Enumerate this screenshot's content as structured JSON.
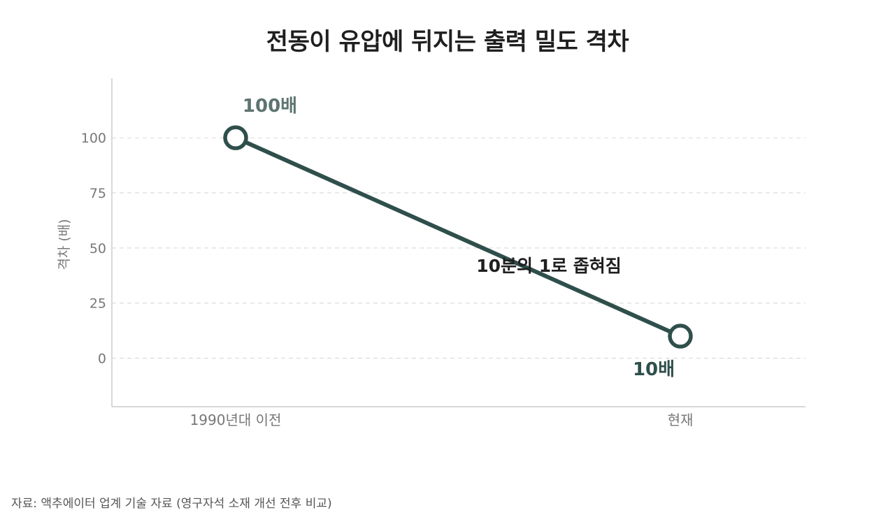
{
  "colors": {
    "line": "#2f4f4b",
    "marker_fill": "#ffffff",
    "label_start": "#5e7471",
    "label_end": "#2f4f4b",
    "grid": "#dddddd",
    "axis": "#cccccc",
    "tick_text": "#777777",
    "annotation": "#1f1f1f"
  },
  "chart_data": {
    "type": "line",
    "title": "전동이 유압에 뒤지는 출력 밀도 격차",
    "xlabel": "",
    "ylabel": "격차 (배)",
    "categories": [
      "1990년대 이전",
      "현재"
    ],
    "series": [
      {
        "values": [
          100,
          10
        ]
      }
    ],
    "point_labels": [
      "100배",
      "10배"
    ],
    "annotation": "10분의 1로 좁혀짐",
    "ylim": [
      -22,
      127
    ],
    "yticks": [
      0,
      25,
      50,
      75,
      100
    ],
    "grid": true,
    "legend": "none"
  },
  "source": "자료: 액추에이터 업계 기술 자료 (영구자석 소재 개선 전후 비교)"
}
